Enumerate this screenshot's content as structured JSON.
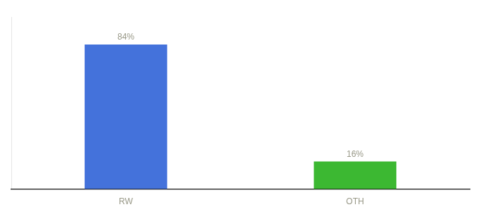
{
  "chart_data": {
    "type": "bar",
    "categories": [
      "RW",
      "OTH"
    ],
    "values": [
      84,
      16
    ],
    "value_labels": [
      "84%",
      "16%"
    ],
    "colors": [
      "#4472db",
      "#3cb832"
    ],
    "ylim": [
      0,
      100
    ],
    "grid": false,
    "data_labels": true,
    "tick_labels": "x"
  }
}
